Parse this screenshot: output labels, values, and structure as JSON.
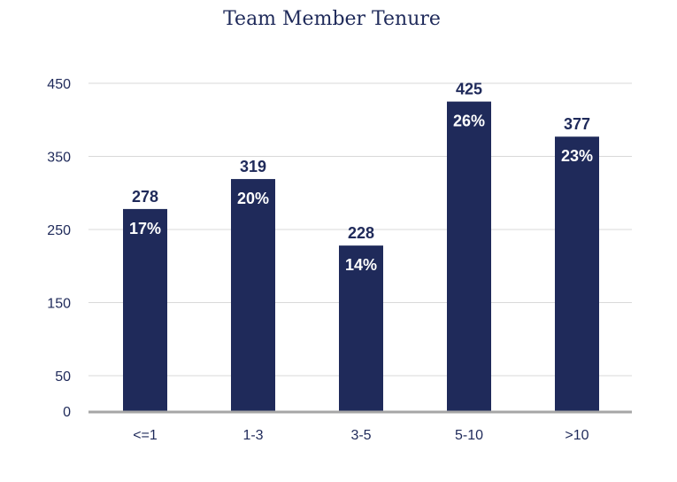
{
  "chart_data": {
    "type": "bar",
    "title": "Team Member Tenure",
    "xlabel": "",
    "ylabel": "",
    "categories": [
      "<=1",
      "1-3",
      "3-5",
      "5-10",
      ">10"
    ],
    "values": [
      278,
      319,
      228,
      425,
      377
    ],
    "percent_labels": [
      "17%",
      "20%",
      "14%",
      "26%",
      "23%"
    ],
    "y_ticks": [
      0,
      50,
      150,
      250,
      350,
      450
    ],
    "ylim": [
      0,
      450
    ],
    "grid": true,
    "bar_color": "#1f2a5a",
    "grid_color": "#d9d9d9",
    "axis_color": "#a6a6a6"
  }
}
